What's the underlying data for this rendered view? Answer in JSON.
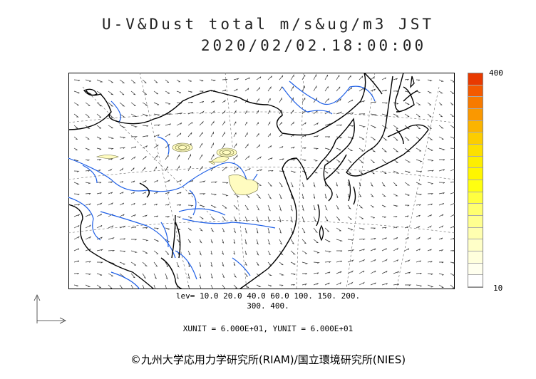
{
  "title": {
    "line1": "U-V&Dust total m/s&ug/m3 JST",
    "line2": "2020/02/02.18:00:00"
  },
  "colorbar": {
    "max_label": "400",
    "min_label": "10",
    "colors": [
      "#e83a00",
      "#f35a00",
      "#f77a00",
      "#fa9800",
      "#fbb400",
      "#fccd00",
      "#fde000",
      "#fdee00",
      "#fff600",
      "#ffff10",
      "#ffff40",
      "#ffff70",
      "#ffff90",
      "#ffffb0",
      "#ffffc8",
      "#ffffdc",
      "#ffffee",
      "#ffffff"
    ]
  },
  "levels": {
    "line1": "lev= 10.0 20.0 40.0 60.0 100. 150. 200.",
    "line2": "300. 400."
  },
  "units": "XUNIT = 6.000E+01, YUNIT = 6.000E+01",
  "copyright": "©九州大学応用力学研究所(RIAM)/国立環境研究所(NIES)",
  "map_colors": {
    "coast": "#000000",
    "rivers": "#1e5fe6",
    "dust_fill": "#fffcc0",
    "dust_contour": "#6b6b3a"
  }
}
